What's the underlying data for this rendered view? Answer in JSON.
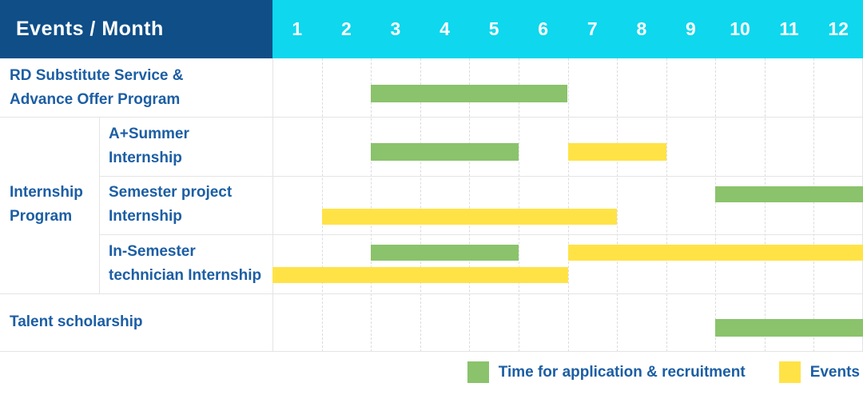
{
  "header": {
    "title": "Events / Month",
    "months": [
      "1",
      "2",
      "3",
      "4",
      "5",
      "6",
      "7",
      "8",
      "9",
      "10",
      "11",
      "12"
    ]
  },
  "colors": {
    "header_bg": "#0f4e87",
    "months_bg": "#0ed7ee",
    "label_text": "#1c5ea4",
    "green": "#8ac36b",
    "yellow": "#ffe346",
    "grid_dashed": "#dcdcdc",
    "border": "#e4e4e4"
  },
  "legend": [
    {
      "series": "application",
      "color_key": "green",
      "label": "Time for application & recruitment"
    },
    {
      "series": "events",
      "color_key": "yellow",
      "label": "Events"
    }
  ],
  "chart_data": {
    "type": "bar",
    "subtype": "gantt-timeline",
    "orientation": "horizontal",
    "title": "Events / Month",
    "x_axis": {
      "label": "Month",
      "ticks": [
        "1",
        "2",
        "3",
        "4",
        "5",
        "6",
        "7",
        "8",
        "9",
        "10",
        "11",
        "12"
      ],
      "range_months": [
        1,
        12
      ]
    },
    "grid": "vertical-dashed-per-month",
    "legend_position": "bottom-right",
    "series_legend": [
      {
        "name": "Time for application & recruitment",
        "color": "#8ac36b"
      },
      {
        "name": "Events",
        "color": "#ffe346"
      }
    ],
    "groups": [
      {
        "label": "Internship Program",
        "label_lines": [
          "Internship",
          "Program"
        ],
        "row_start": 1,
        "row_end": 3
      }
    ],
    "rows": [
      {
        "group": "",
        "label": "RD Substitute Service & Advance Offer Program",
        "label_lines": [
          "RD Substitute Service &",
          "Advance Offer Program"
        ],
        "bars": [
          {
            "series": "Time for application & recruitment",
            "color_key": "green",
            "start_month": 3,
            "end_month": 6,
            "lane": "center"
          }
        ]
      },
      {
        "group": "Internship Program",
        "label": "A+Summer Internship",
        "label_lines": [
          "A+Summer",
          "Internship"
        ],
        "bars": [
          {
            "series": "Time for application & recruitment",
            "color_key": "green",
            "start_month": 3,
            "end_month": 5,
            "lane": "center"
          },
          {
            "series": "Events",
            "color_key": "yellow",
            "start_month": 7,
            "end_month": 8,
            "lane": "center"
          }
        ]
      },
      {
        "group": "Internship Program",
        "label": "Semester project Internship",
        "label_lines": [
          "Semester project",
          "Internship"
        ],
        "bars": [
          {
            "series": "Time for application & recruitment",
            "color_key": "green",
            "start_month": 10,
            "end_month": 12,
            "lane": "upper"
          },
          {
            "series": "Events",
            "color_key": "yellow",
            "start_month": 2,
            "end_month": 7,
            "lane": "lower"
          }
        ]
      },
      {
        "group": "Internship Program",
        "label": "In-Semester technician Internship",
        "label_lines": [
          "In-Semester",
          "technician Internship"
        ],
        "bars": [
          {
            "series": "Time for application & recruitment",
            "color_key": "green",
            "start_month": 3,
            "end_month": 5,
            "lane": "upper"
          },
          {
            "series": "Events",
            "color_key": "yellow",
            "start_month": 7,
            "end_month": 12,
            "lane": "upper"
          },
          {
            "series": "Events",
            "color_key": "yellow",
            "start_month": 1,
            "end_month": 6,
            "lane": "lower"
          }
        ]
      },
      {
        "group": "",
        "label": "Talent scholarship",
        "label_lines": [
          "Talent scholarship"
        ],
        "bars": [
          {
            "series": "Time for application & recruitment",
            "color_key": "green",
            "start_month": 10,
            "end_month": 12,
            "lane": "center"
          }
        ]
      }
    ]
  }
}
